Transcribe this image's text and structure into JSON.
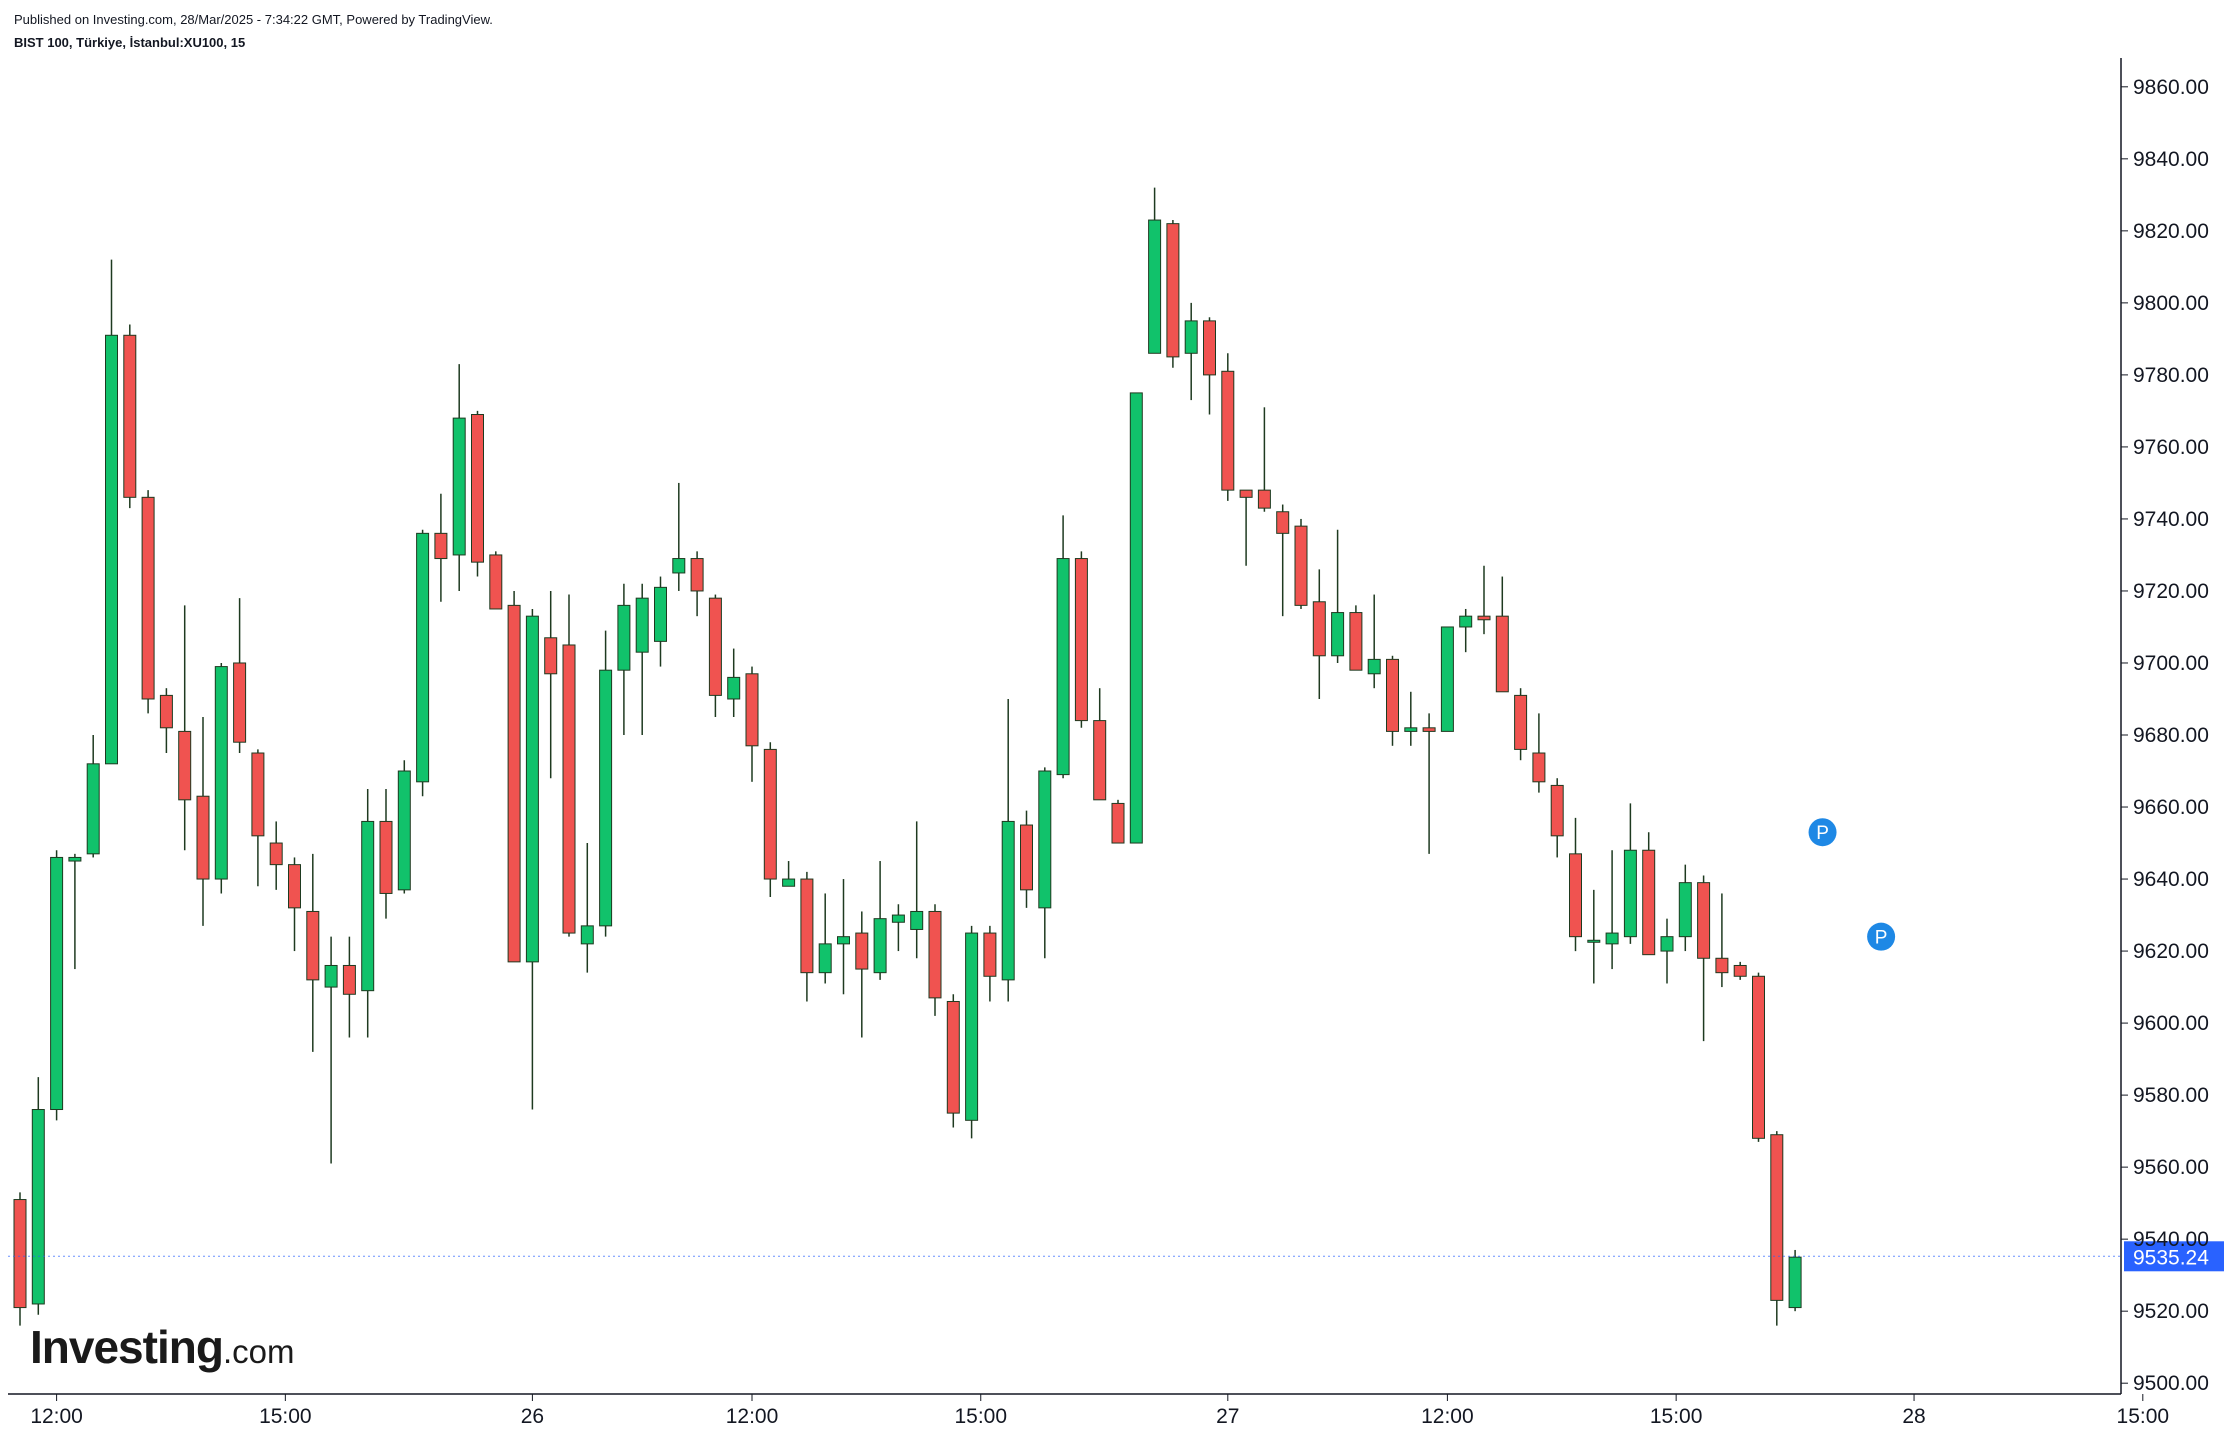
{
  "header": {
    "published": "Published on Investing.com, 28/Mar/2025 - 7:34:22 GMT, Powered by TradingView.",
    "symbol": "BIST 100, Türkiye, İstanbul:XU100, 15"
  },
  "logo": {
    "brand": "Investing",
    "suffix": ".com"
  },
  "colors": {
    "up": "#11c26b",
    "down": "#f05350",
    "wick": "#1e3a20",
    "last_price_bg": "#2962ff",
    "marker": "#1e88e5"
  },
  "chart_data": {
    "type": "candlestick",
    "ylim": [
      9497,
      9868
    ],
    "y_ticks": [
      "9500.00",
      "9520.00",
      "9540.00",
      "9560.00",
      "9580.00",
      "9600.00",
      "9620.00",
      "9640.00",
      "9660.00",
      "9680.00",
      "9700.00",
      "9720.00",
      "9740.00",
      "9760.00",
      "9780.00",
      "9800.00",
      "9820.00",
      "9840.00",
      "9860.00"
    ],
    "x_ticks": [
      "12:00",
      "15:00",
      "26",
      "12:00",
      "15:00",
      "27",
      "12:00",
      "15:00",
      "28",
      "15:00"
    ],
    "x_tick_bars": [
      2,
      14.5,
      28,
      40,
      52.5,
      66,
      78,
      90.5,
      103.5,
      116
    ],
    "last_price": 9535.24,
    "last_price_label": "9535.24",
    "markers": [
      {
        "label": "P",
        "bar": 98.5,
        "price": 9653
      },
      {
        "label": "P",
        "bar": 101.7,
        "price": 9624
      }
    ],
    "candles": [
      {
        "o": 9551,
        "h": 9553,
        "l": 9516,
        "c": 9521
      },
      {
        "o": 9522,
        "h": 9585,
        "l": 9519,
        "c": 9576
      },
      {
        "o": 9576,
        "h": 9648,
        "l": 9573,
        "c": 9646
      },
      {
        "o": 9645,
        "h": 9647,
        "l": 9615,
        "c": 9646
      },
      {
        "o": 9647,
        "h": 9680,
        "l": 9646,
        "c": 9672
      },
      {
        "o": 9672,
        "h": 9812,
        "l": 9672,
        "c": 9791
      },
      {
        "o": 9791,
        "h": 9794,
        "l": 9743,
        "c": 9746
      },
      {
        "o": 9746,
        "h": 9748,
        "l": 9686,
        "c": 9690
      },
      {
        "o": 9691,
        "h": 9693,
        "l": 9675,
        "c": 9682
      },
      {
        "o": 9681,
        "h": 9716,
        "l": 9648,
        "c": 9662
      },
      {
        "o": 9663,
        "h": 9685,
        "l": 9627,
        "c": 9640
      },
      {
        "o": 9640,
        "h": 9700,
        "l": 9636,
        "c": 9699
      },
      {
        "o": 9700,
        "h": 9718,
        "l": 9675,
        "c": 9678
      },
      {
        "o": 9675,
        "h": 9676,
        "l": 9638,
        "c": 9652
      },
      {
        "o": 9650,
        "h": 9656,
        "l": 9637,
        "c": 9644
      },
      {
        "o": 9644,
        "h": 9646,
        "l": 9620,
        "c": 9632
      },
      {
        "o": 9631,
        "h": 9647,
        "l": 9592,
        "c": 9612
      },
      {
        "o": 9610,
        "h": 9624,
        "l": 9561,
        "c": 9616
      },
      {
        "o": 9616,
        "h": 9624,
        "l": 9596,
        "c": 9608
      },
      {
        "o": 9609,
        "h": 9665,
        "l": 9596,
        "c": 9656
      },
      {
        "o": 9656,
        "h": 9665,
        "l": 9629,
        "c": 9636
      },
      {
        "o": 9637,
        "h": 9673,
        "l": 9636,
        "c": 9670
      },
      {
        "o": 9667,
        "h": 9737,
        "l": 9663,
        "c": 9736
      },
      {
        "o": 9736,
        "h": 9747,
        "l": 9717,
        "c": 9729
      },
      {
        "o": 9730,
        "h": 9783,
        "l": 9720,
        "c": 9768
      },
      {
        "o": 9769,
        "h": 9770,
        "l": 9724,
        "c": 9728
      },
      {
        "o": 9730,
        "h": 9731,
        "l": 9715,
        "c": 9715
      },
      {
        "o": 9716,
        "h": 9720,
        "l": 9617,
        "c": 9617
      },
      {
        "o": 9617,
        "h": 9715,
        "l": 9576,
        "c": 9713
      },
      {
        "o": 9707,
        "h": 9720,
        "l": 9668,
        "c": 9697
      },
      {
        "o": 9705,
        "h": 9719,
        "l": 9624,
        "c": 9625
      },
      {
        "o": 9622,
        "h": 9650,
        "l": 9614,
        "c": 9627
      },
      {
        "o": 9627,
        "h": 9709,
        "l": 9624,
        "c": 9698
      },
      {
        "o": 9698,
        "h": 9722,
        "l": 9680,
        "c": 9716
      },
      {
        "o": 9703,
        "h": 9722,
        "l": 9680,
        "c": 9718
      },
      {
        "o": 9706,
        "h": 9724,
        "l": 9699,
        "c": 9721
      },
      {
        "o": 9725,
        "h": 9750,
        "l": 9720,
        "c": 9729
      },
      {
        "o": 9729,
        "h": 9731,
        "l": 9713,
        "c": 9720
      },
      {
        "o": 9718,
        "h": 9719,
        "l": 9685,
        "c": 9691
      },
      {
        "o": 9690,
        "h": 9704,
        "l": 9685,
        "c": 9696
      },
      {
        "o": 9697,
        "h": 9699,
        "l": 9667,
        "c": 9677
      },
      {
        "o": 9676,
        "h": 9678,
        "l": 9635,
        "c": 9640
      },
      {
        "o": 9638,
        "h": 9645,
        "l": 9638,
        "c": 9640
      },
      {
        "o": 9640,
        "h": 9642,
        "l": 9606,
        "c": 9614
      },
      {
        "o": 9614,
        "h": 9636,
        "l": 9611,
        "c": 9622
      },
      {
        "o": 9622,
        "h": 9640,
        "l": 9608,
        "c": 9624
      },
      {
        "o": 9625,
        "h": 9631,
        "l": 9596,
        "c": 9615
      },
      {
        "o": 9614,
        "h": 9645,
        "l": 9612,
        "c": 9629
      },
      {
        "o": 9628,
        "h": 9633,
        "l": 9620,
        "c": 9630
      },
      {
        "o": 9626,
        "h": 9656,
        "l": 9618,
        "c": 9631
      },
      {
        "o": 9631,
        "h": 9633,
        "l": 9602,
        "c": 9607
      },
      {
        "o": 9606,
        "h": 9608,
        "l": 9571,
        "c": 9575
      },
      {
        "o": 9573,
        "h": 9627,
        "l": 9568,
        "c": 9625
      },
      {
        "o": 9625,
        "h": 9627,
        "l": 9606,
        "c": 9613
      },
      {
        "o": 9612,
        "h": 9690,
        "l": 9606,
        "c": 9656
      },
      {
        "o": 9655,
        "h": 9659,
        "l": 9632,
        "c": 9637
      },
      {
        "o": 9632,
        "h": 9671,
        "l": 9618,
        "c": 9670
      },
      {
        "o": 9669,
        "h": 9741,
        "l": 9668,
        "c": 9729
      },
      {
        "o": 9729,
        "h": 9731,
        "l": 9682,
        "c": 9684
      },
      {
        "o": 9684,
        "h": 9693,
        "l": 9662,
        "c": 9662
      },
      {
        "o": 9661,
        "h": 9662,
        "l": 9650,
        "c": 9650
      },
      {
        "o": 9650,
        "h": 9775,
        "l": 9650,
        "c": 9775
      },
      {
        "o": 9786,
        "h": 9832,
        "l": 9786,
        "c": 9823
      },
      {
        "o": 9822,
        "h": 9823,
        "l": 9782,
        "c": 9785
      },
      {
        "o": 9786,
        "h": 9800,
        "l": 9773,
        "c": 9795
      },
      {
        "o": 9795,
        "h": 9796,
        "l": 9769,
        "c": 9780
      },
      {
        "o": 9781,
        "h": 9786,
        "l": 9745,
        "c": 9748
      },
      {
        "o": 9748,
        "h": 9748,
        "l": 9727,
        "c": 9746
      },
      {
        "o": 9748,
        "h": 9771,
        "l": 9742,
        "c": 9743
      },
      {
        "o": 9742,
        "h": 9744,
        "l": 9713,
        "c": 9736
      },
      {
        "o": 9738,
        "h": 9740,
        "l": 9715,
        "c": 9716
      },
      {
        "o": 9717,
        "h": 9726,
        "l": 9690,
        "c": 9702
      },
      {
        "o": 9702,
        "h": 9737,
        "l": 9700,
        "c": 9714
      },
      {
        "o": 9714,
        "h": 9716,
        "l": 9698,
        "c": 9698
      },
      {
        "o": 9697,
        "h": 9719,
        "l": 9693,
        "c": 9701
      },
      {
        "o": 9701,
        "h": 9702,
        "l": 9677,
        "c": 9681
      },
      {
        "o": 9681,
        "h": 9692,
        "l": 9677,
        "c": 9682
      },
      {
        "o": 9682,
        "h": 9686,
        "l": 9647,
        "c": 9681
      },
      {
        "o": 9681,
        "h": 9710,
        "l": 9681,
        "c": 9710
      },
      {
        "o": 9710,
        "h": 9715,
        "l": 9703,
        "c": 9713
      },
      {
        "o": 9713,
        "h": 9727,
        "l": 9708,
        "c": 9712
      },
      {
        "o": 9713,
        "h": 9724,
        "l": 9692,
        "c": 9692
      },
      {
        "o": 9691,
        "h": 9693,
        "l": 9673,
        "c": 9676
      },
      {
        "o": 9675,
        "h": 9686,
        "l": 9664,
        "c": 9667
      },
      {
        "o": 9666,
        "h": 9668,
        "l": 9646,
        "c": 9652
      },
      {
        "o": 9647,
        "h": 9657,
        "l": 9620,
        "c": 9624
      },
      {
        "o": 9623,
        "h": 9637,
        "l": 9611,
        "c": 9623
      },
      {
        "o": 9622,
        "h": 9648,
        "l": 9615,
        "c": 9625
      },
      {
        "o": 9624,
        "h": 9661,
        "l": 9622,
        "c": 9648
      },
      {
        "o": 9648,
        "h": 9653,
        "l": 9619,
        "c": 9619
      },
      {
        "o": 9620,
        "h": 9629,
        "l": 9611,
        "c": 9624
      },
      {
        "o": 9624,
        "h": 9644,
        "l": 9620,
        "c": 9639
      },
      {
        "o": 9639,
        "h": 9641,
        "l": 9595,
        "c": 9618
      },
      {
        "o": 9618,
        "h": 9636,
        "l": 9610,
        "c": 9614
      },
      {
        "o": 9616,
        "h": 9617,
        "l": 9612,
        "c": 9613
      },
      {
        "o": 9613,
        "h": 9614,
        "l": 9567,
        "c": 9568
      },
      {
        "o": 9569,
        "h": 9570,
        "l": 9516,
        "c": 9523
      },
      {
        "o": 9521,
        "h": 9537,
        "l": 9520,
        "c": 9535
      }
    ]
  }
}
